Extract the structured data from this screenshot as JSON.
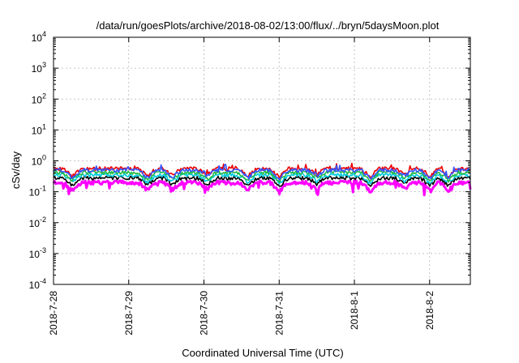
{
  "chart_data": {
    "type": "line",
    "title": "/data/run/goesPlots/archive/2018-08-02/13:00/flux/../bryn/5daysMoon.plot",
    "xlabel": "Coordinated Universal Time (UTC)",
    "ylabel": "cSv/day",
    "y_scale": "log",
    "ylim": [
      0.0001,
      10000
    ],
    "y_ticks": [
      {
        "value": 0.0001,
        "base": "10",
        "exp": "-4"
      },
      {
        "value": 0.001,
        "base": "10",
        "exp": "-3"
      },
      {
        "value": 0.01,
        "base": "10",
        "exp": "-2"
      },
      {
        "value": 0.1,
        "base": "10",
        "exp": "-1"
      },
      {
        "value": 1,
        "base": "10",
        "exp": "0"
      },
      {
        "value": 10,
        "base": "10",
        "exp": "1"
      },
      {
        "value": 100,
        "base": "10",
        "exp": "2"
      },
      {
        "value": 1000,
        "base": "10",
        "exp": "3"
      },
      {
        "value": 10000,
        "base": "10",
        "exp": "4"
      }
    ],
    "x_range": [
      "2018-07-28 00:00",
      "2018-08-02 13:00"
    ],
    "x_ticks": [
      "2018-7-28",
      "2018-7-29",
      "2018-7-30",
      "2018-7-31",
      "2018-8-1",
      "2018-8-2"
    ],
    "grid": true,
    "legend": "none",
    "series": [
      {
        "color": "#ff00ff",
        "baseline": 0.2,
        "dip_min": 0.075
      },
      {
        "color": "#000000",
        "baseline": 0.28,
        "dip_min": 0.15
      },
      {
        "color": "#00ccdd",
        "baseline": 0.35,
        "dip_min": 0.18
      },
      {
        "color": "#22bb44",
        "baseline": 0.42,
        "dip_min": 0.2
      },
      {
        "color": "#ee0000",
        "baseline": 0.56,
        "dip_min": 0.23
      },
      {
        "color": "#3355ff",
        "baseline": 0.5,
        "dip_min": 0.21
      }
    ],
    "dips": [
      {
        "at": "2018-07-28 06:00",
        "factor": 0.55
      },
      {
        "at": "2018-07-29 06:00",
        "factor": 0.55
      },
      {
        "at": "2018-07-29 14:00",
        "factor": 0.6
      },
      {
        "at": "2018-07-30 01:00",
        "factor": 0.6
      },
      {
        "at": "2018-07-30 14:00",
        "factor": 0.55
      },
      {
        "at": "2018-07-31 00:00",
        "factor": 0.5
      },
      {
        "at": "2018-07-31 12:00",
        "factor": 0.65
      },
      {
        "at": "2018-08-01 05:00",
        "factor": 0.5
      },
      {
        "at": "2018-08-01 16:00",
        "factor": 0.65
      },
      {
        "at": "2018-08-02 00:00",
        "factor": 0.55
      },
      {
        "at": "2018-08-02 06:00",
        "factor": 0.55
      }
    ]
  }
}
